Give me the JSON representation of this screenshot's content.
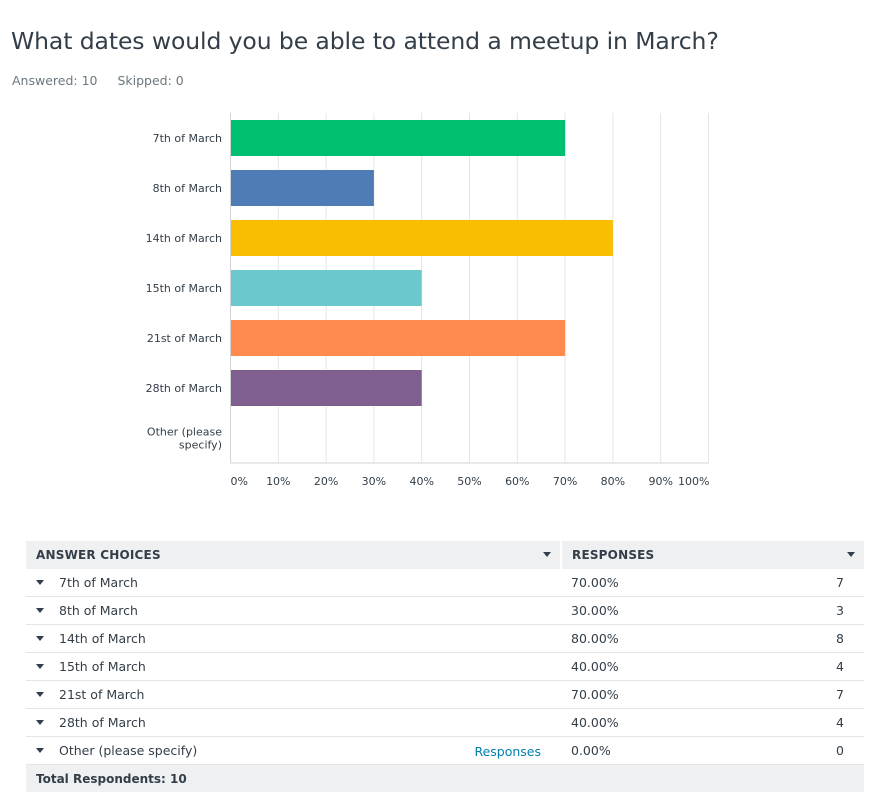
{
  "question": {
    "title": "What dates would you be able to attend a meetup in March?",
    "answered_label": "Answered: 10",
    "skipped_label": "Skipped: 0"
  },
  "chart_data": {
    "type": "bar",
    "orientation": "horizontal",
    "title": "",
    "xlabel": "",
    "ylabel": "",
    "categories": [
      "7th of March",
      "8th of March",
      "14th of March",
      "15th of March",
      "21st of March",
      "28th of March",
      "Other (please specify)"
    ],
    "category_lines": [
      [
        "7th of March"
      ],
      [
        "8th of March"
      ],
      [
        "14th of March"
      ],
      [
        "15th of March"
      ],
      [
        "21st of March"
      ],
      [
        "28th of March"
      ],
      [
        "Other (please",
        "specify)"
      ]
    ],
    "values": [
      70,
      30,
      80,
      40,
      70,
      40,
      0
    ],
    "colors": [
      "#00bf6f",
      "#507cb6",
      "#f9be00",
      "#6bc8cd",
      "#ff8b4f",
      "#7f5f90",
      "#a0a0a0"
    ],
    "xlim": [
      0,
      100
    ],
    "x_ticks": [
      "0%",
      "10%",
      "20%",
      "30%",
      "40%",
      "50%",
      "60%",
      "70%",
      "80%",
      "90%",
      "100%"
    ],
    "grid": true,
    "legend": "none"
  },
  "table": {
    "headers": {
      "choices": "ANSWER CHOICES",
      "responses": "RESPONSES"
    },
    "rows": [
      {
        "choice": "7th of March",
        "pct": "70.00%",
        "count": "7",
        "link": ""
      },
      {
        "choice": "8th of March",
        "pct": "30.00%",
        "count": "3",
        "link": ""
      },
      {
        "choice": "14th of March",
        "pct": "80.00%",
        "count": "8",
        "link": ""
      },
      {
        "choice": "15th of March",
        "pct": "40.00%",
        "count": "4",
        "link": ""
      },
      {
        "choice": "21st of March",
        "pct": "70.00%",
        "count": "7",
        "link": ""
      },
      {
        "choice": "28th of March",
        "pct": "40.00%",
        "count": "4",
        "link": ""
      },
      {
        "choice": "Other (please specify)",
        "pct": "0.00%",
        "count": "0",
        "link": "Responses"
      }
    ],
    "total_label": "Total Respondents: 10"
  }
}
